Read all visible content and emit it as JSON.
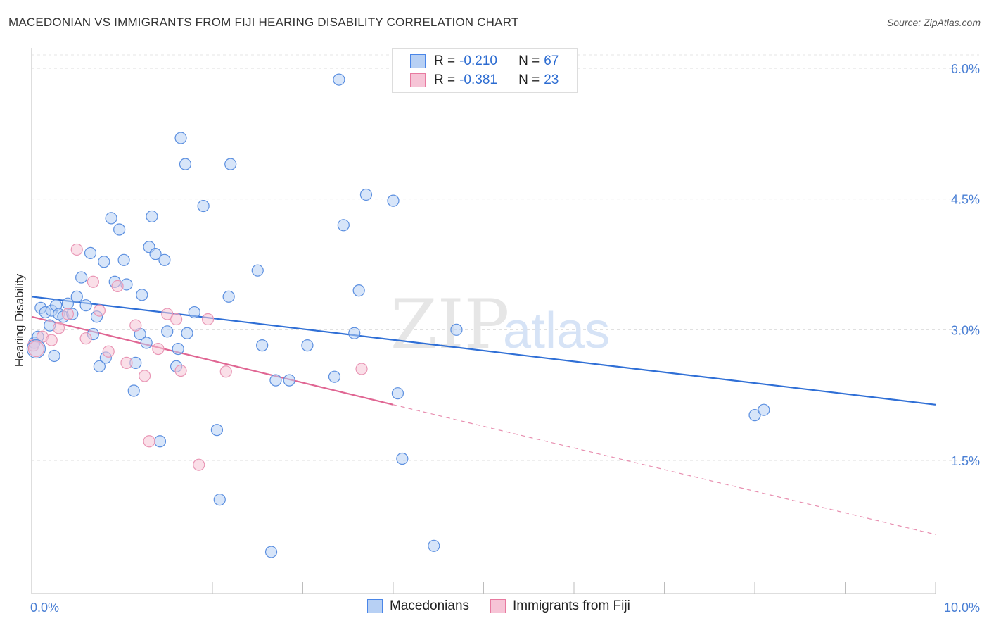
{
  "title": "MACEDONIAN VS IMMIGRANTS FROM FIJI HEARING DISABILITY CORRELATION CHART",
  "source": "Source: ZipAtlas.com",
  "watermark": {
    "zip": "ZIP",
    "atlas": "atlas"
  },
  "legend": {
    "rows": [
      {
        "r_label": "R = ",
        "r_value": "-0.210",
        "n_label": "N = ",
        "n_value": "67"
      },
      {
        "r_label": "R = ",
        "r_value": "-0.381",
        "n_label": "N = ",
        "n_value": "23"
      }
    ]
  },
  "bottom_legend": {
    "series1": "Macedonians",
    "series2": "Immigrants from Fiji"
  },
  "colors": {
    "blue": "#4a86e8",
    "blue_fill": "#b7d0f4",
    "pink": "#e87aa0",
    "pink_fill": "#f6c4d6",
    "axis_text": "#4a7fd4"
  },
  "chart_data": {
    "type": "scatter",
    "title": "MACEDONIAN VS IMMIGRANTS FROM FIJI HEARING DISABILITY CORRELATION CHART",
    "xlabel": "",
    "ylabel": "Hearing Disability",
    "xlim": [
      0,
      10
    ],
    "ylim": [
      0,
      6.2
    ],
    "x_tick_labels": [
      "0.0%",
      "10.0%"
    ],
    "y_ticks": [
      1.5,
      3.0,
      4.5,
      6.0
    ],
    "y_tick_labels": [
      "1.5%",
      "3.0%",
      "4.5%",
      "6.0%"
    ],
    "series": [
      {
        "name": "Macedonians",
        "color": "#4a86e8",
        "trend": {
          "x": [
            0,
            10
          ],
          "y": [
            3.38,
            2.14
          ]
        },
        "points": [
          [
            0.03,
            2.85
          ],
          [
            0.07,
            2.92
          ],
          [
            0.1,
            3.25
          ],
          [
            0.15,
            3.2
          ],
          [
            0.2,
            3.05
          ],
          [
            0.22,
            3.22
          ],
          [
            0.27,
            3.28
          ],
          [
            0.3,
            3.18
          ],
          [
            0.35,
            3.15
          ],
          [
            0.4,
            3.3
          ],
          [
            0.45,
            3.18
          ],
          [
            0.5,
            3.38
          ],
          [
            0.55,
            3.6
          ],
          [
            0.6,
            3.28
          ],
          [
            0.65,
            3.88
          ],
          [
            0.68,
            2.95
          ],
          [
            0.72,
            3.15
          ],
          [
            0.75,
            2.58
          ],
          [
            0.8,
            3.78
          ],
          [
            0.82,
            2.68
          ],
          [
            0.88,
            4.28
          ],
          [
            0.92,
            3.55
          ],
          [
            0.97,
            4.15
          ],
          [
            1.02,
            3.8
          ],
          [
            1.05,
            3.52
          ],
          [
            1.13,
            2.3
          ],
          [
            1.15,
            2.62
          ],
          [
            1.2,
            2.95
          ],
          [
            1.22,
            3.4
          ],
          [
            1.27,
            2.85
          ],
          [
            1.3,
            3.95
          ],
          [
            1.33,
            4.3
          ],
          [
            1.37,
            3.87
          ],
          [
            1.42,
            1.72
          ],
          [
            1.47,
            3.8
          ],
          [
            1.5,
            2.98
          ],
          [
            1.6,
            2.58
          ],
          [
            1.62,
            2.78
          ],
          [
            1.65,
            5.2
          ],
          [
            1.7,
            4.9
          ],
          [
            1.72,
            2.96
          ],
          [
            1.8,
            3.2
          ],
          [
            1.9,
            4.42
          ],
          [
            2.05,
            1.85
          ],
          [
            2.08,
            1.05
          ],
          [
            2.18,
            3.38
          ],
          [
            2.2,
            4.9
          ],
          [
            2.5,
            3.68
          ],
          [
            2.55,
            2.82
          ],
          [
            2.7,
            2.42
          ],
          [
            2.85,
            2.42
          ],
          [
            3.05,
            2.82
          ],
          [
            3.35,
            2.46
          ],
          [
            3.4,
            5.87
          ],
          [
            3.45,
            4.2
          ],
          [
            3.57,
            2.96
          ],
          [
            3.62,
            3.45
          ],
          [
            3.7,
            4.55
          ],
          [
            4.0,
            4.48
          ],
          [
            4.05,
            2.27
          ],
          [
            4.1,
            1.52
          ],
          [
            4.45,
            0.52
          ],
          [
            4.7,
            3.0
          ],
          [
            8.0,
            2.02
          ],
          [
            8.1,
            2.08
          ],
          [
            2.65,
            0.45
          ],
          [
            0.25,
            2.7
          ]
        ]
      },
      {
        "name": "Immigrants from Fiji",
        "color": "#e87aa0",
        "trend": {
          "x": [
            0,
            4.0
          ],
          "y": [
            3.15,
            2.14
          ]
        },
        "trend_dashed": {
          "x": [
            4.0,
            10
          ],
          "y": [
            2.14,
            0.65
          ]
        },
        "points": [
          [
            0.02,
            2.82
          ],
          [
            0.12,
            2.92
          ],
          [
            0.22,
            2.88
          ],
          [
            0.3,
            3.02
          ],
          [
            0.4,
            3.18
          ],
          [
            0.5,
            3.92
          ],
          [
            0.6,
            2.9
          ],
          [
            0.68,
            3.55
          ],
          [
            0.75,
            3.22
          ],
          [
            0.85,
            2.75
          ],
          [
            0.95,
            3.5
          ],
          [
            1.05,
            2.62
          ],
          [
            1.15,
            3.05
          ],
          [
            1.25,
            2.47
          ],
          [
            1.3,
            1.72
          ],
          [
            1.4,
            2.78
          ],
          [
            1.5,
            3.18
          ],
          [
            1.6,
            3.12
          ],
          [
            1.65,
            2.53
          ],
          [
            1.85,
            1.45
          ],
          [
            1.95,
            3.12
          ],
          [
            2.15,
            2.52
          ],
          [
            3.65,
            2.55
          ]
        ]
      }
    ]
  }
}
